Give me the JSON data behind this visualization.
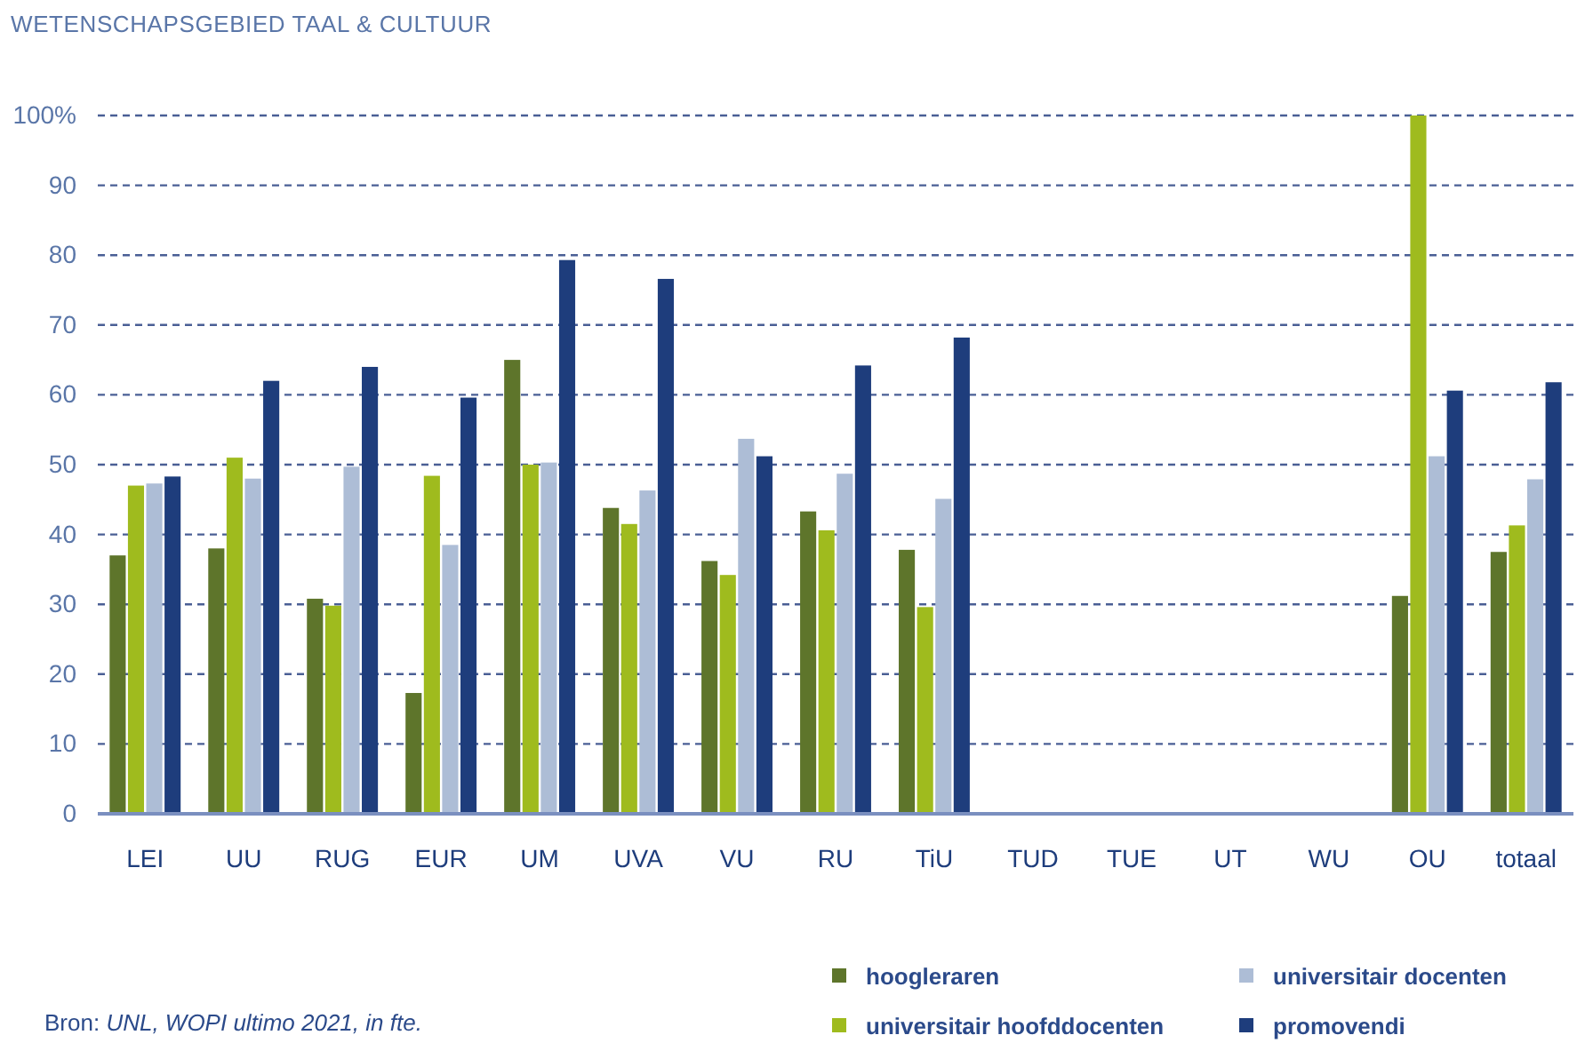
{
  "chart_data": {
    "type": "bar",
    "title": "WETENSCHAPSGEBIED TAAL & CULTUUR",
    "categories": [
      "LEI",
      "UU",
      "RUG",
      "EUR",
      "UM",
      "UVA",
      "VU",
      "RU",
      "TiU",
      "TUD",
      "TUE",
      "UT",
      "WU",
      "OU",
      "totaal"
    ],
    "series": [
      {
        "name": "hoogleraren",
        "color": "#5e752b",
        "values": [
          37,
          38,
          30.8,
          17.3,
          65,
          43.8,
          36.2,
          43.3,
          37.8,
          null,
          null,
          null,
          null,
          31.2,
          37.5
        ]
      },
      {
        "name": "universitair hoofddocenten",
        "color": "#9fbb1e",
        "values": [
          47,
          51,
          29.8,
          48.4,
          50,
          41.5,
          34.2,
          40.6,
          29.6,
          null,
          null,
          null,
          null,
          100,
          41.3
        ]
      },
      {
        "name": "universitair docenten",
        "color": "#adbdd6",
        "values": [
          47.3,
          48,
          49.7,
          38.5,
          50.3,
          46.3,
          53.7,
          48.7,
          45.1,
          null,
          null,
          null,
          null,
          51.2,
          47.9
        ]
      },
      {
        "name": "promovendi",
        "color": "#1e3d7c",
        "values": [
          48.3,
          62,
          64,
          59.6,
          79.3,
          76.6,
          51.2,
          64.2,
          68.2,
          null,
          null,
          null,
          null,
          60.6,
          61.8
        ]
      }
    ],
    "ylim": [
      0,
      100
    ],
    "yticks": [
      0,
      10,
      20,
      30,
      40,
      50,
      60,
      70,
      80,
      90,
      {
        "value": 100,
        "label": "100%"
      }
    ],
    "grid": "y",
    "legend": "bottom",
    "annotations": [
      "Bron: UNL, WOPI ultimo 2021, in fte."
    ]
  }
}
